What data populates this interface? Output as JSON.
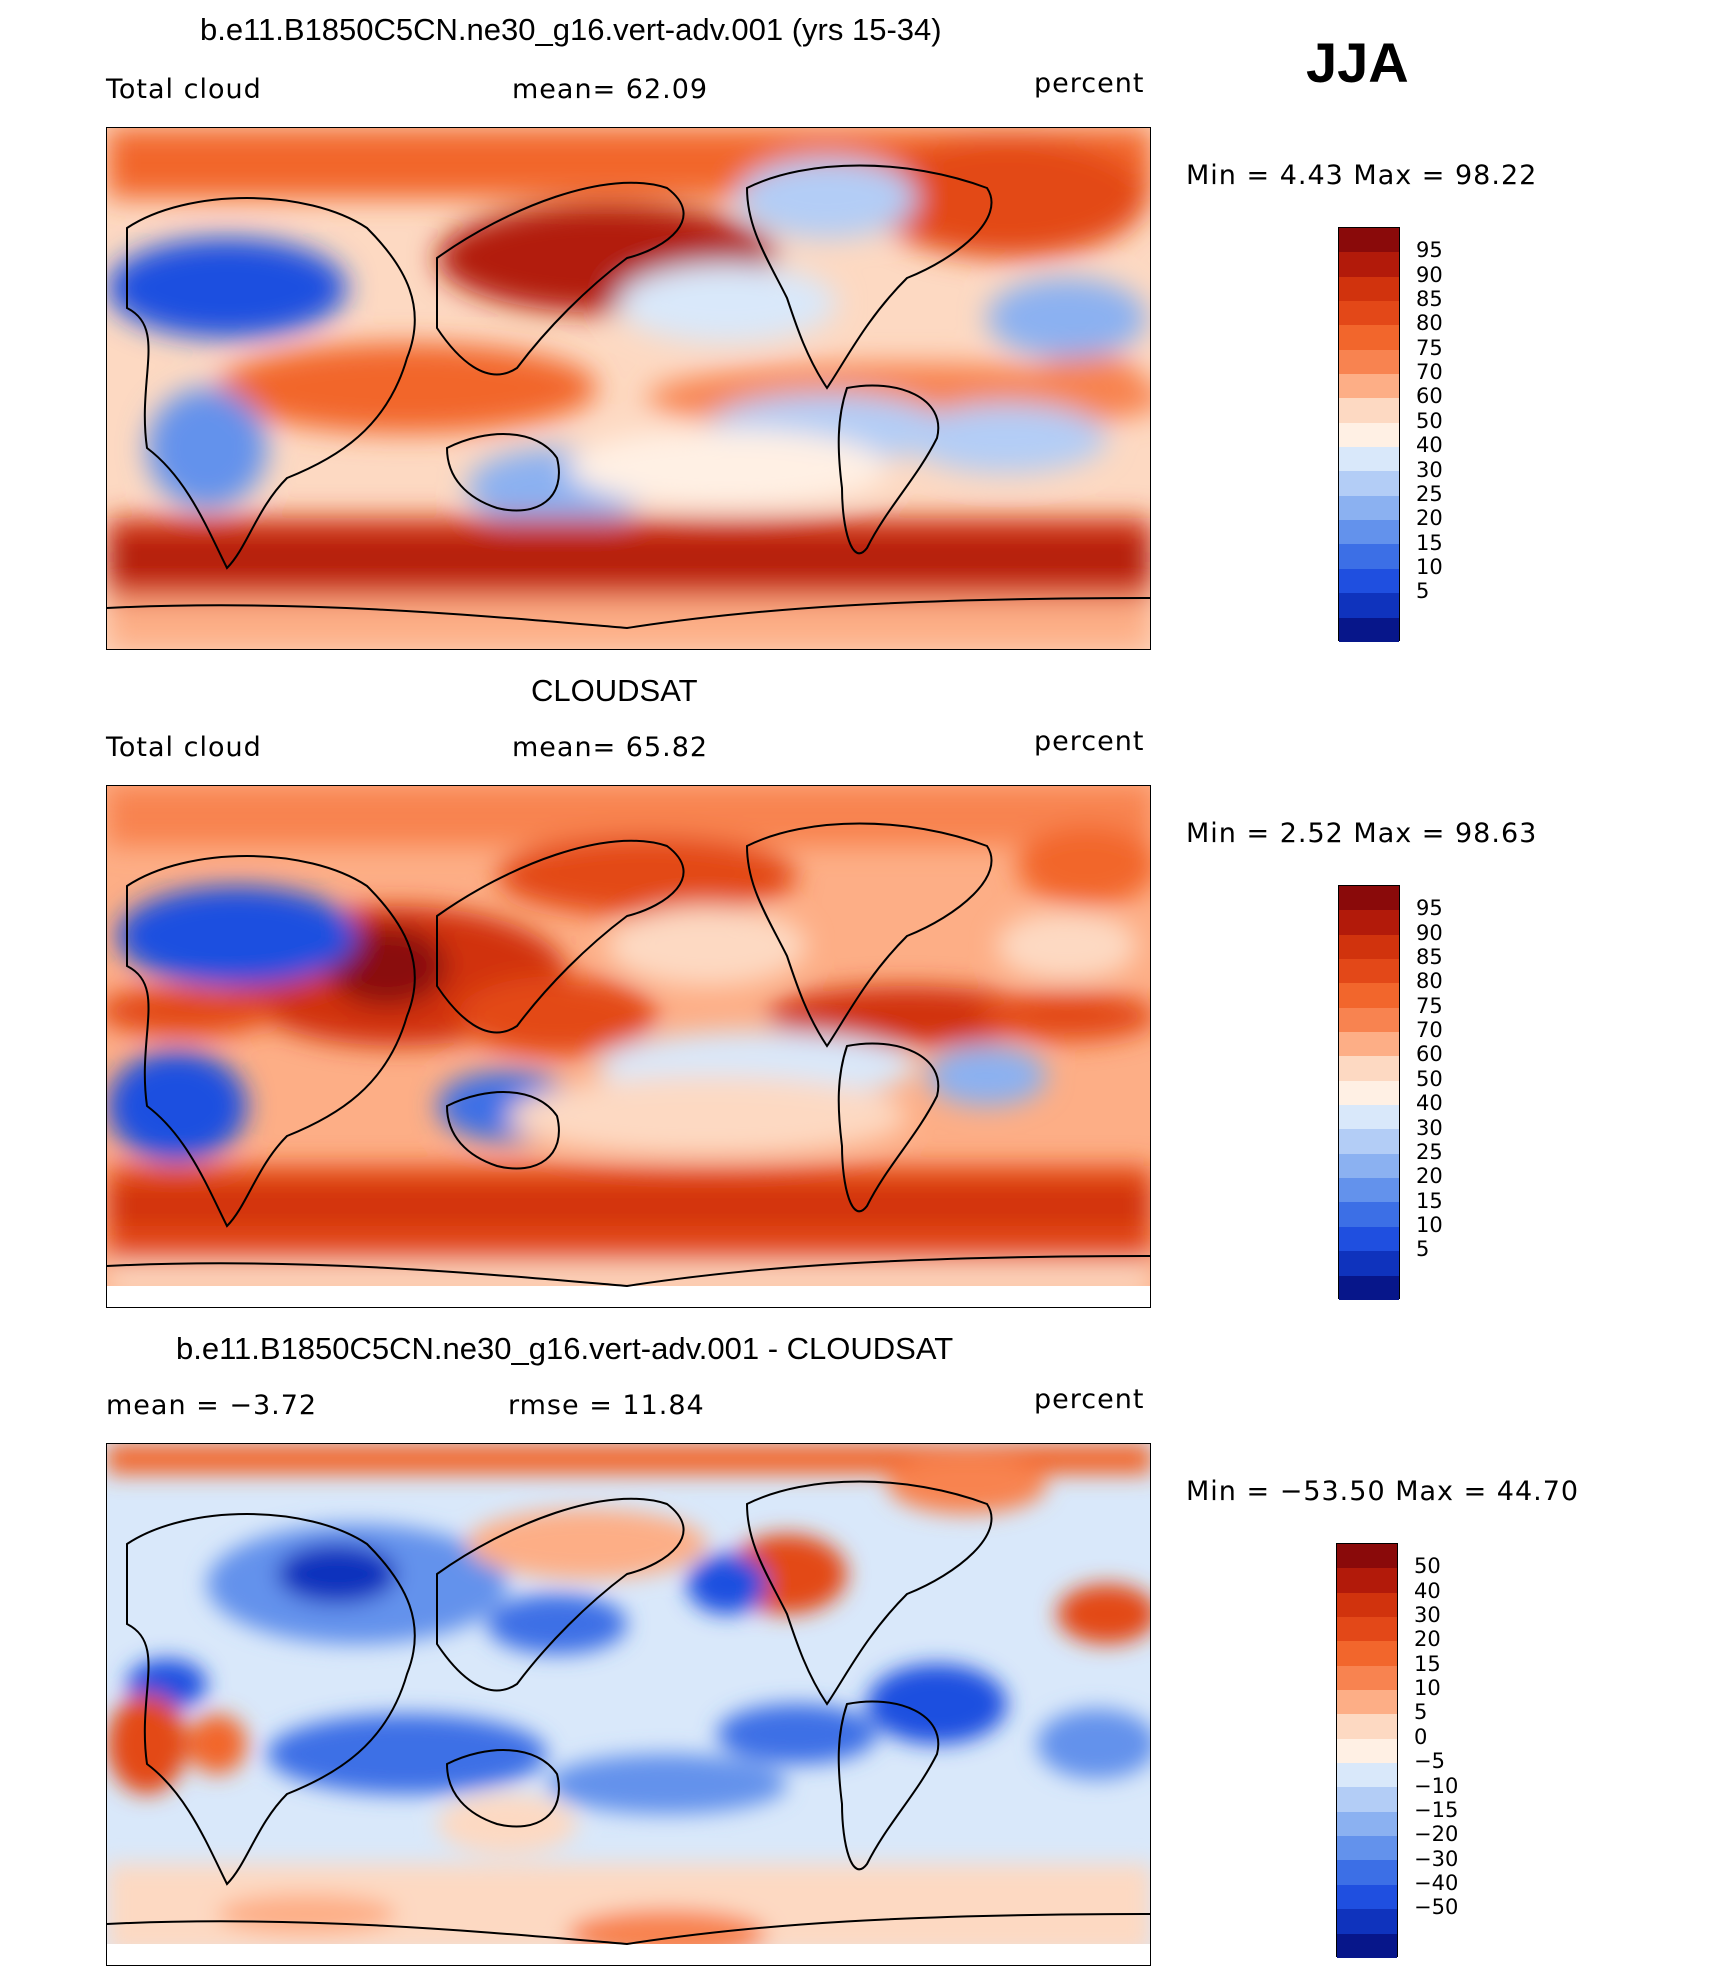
{
  "season": "JJA",
  "panels": [
    {
      "title": "b.e11.B1850C5CN.ne30_g16.vert-adv.001 (yrs 15-34)",
      "left_label": "Total cloud",
      "center_label": "mean=   62.09",
      "right_label": "percent",
      "minmax_label": "Min =    4.43  Max =   98.22"
    },
    {
      "title": "CLOUDSAT",
      "left_label": "Total cloud",
      "center_label": "mean=   65.82",
      "right_label": "percent",
      "minmax_label": "Min =    2.52  Max =   98.63"
    },
    {
      "title": "b.e11.B1850C5CN.ne30_g16.vert-adv.001 - CLOUDSAT",
      "left_label": "mean  =   −3.72",
      "center_label": "rmse  =   11.84",
      "right_label": "percent",
      "minmax_label": "Min = −53.50  Max =   44.70"
    }
  ],
  "colorbars": [
    {
      "labels": [
        "95",
        "90",
        "85",
        "80",
        "75",
        "70",
        "60",
        "50",
        "40",
        "30",
        "25",
        "20",
        "15",
        "10",
        "5"
      ],
      "colors": [
        "#8a0a0a",
        "#b21a0a",
        "#d1330d",
        "#e34818",
        "#f2662c",
        "#f88350",
        "#fdae86",
        "#fdd9c2",
        "#fff0e4",
        "#d9e8fa",
        "#b3cdf6",
        "#8bb1f1",
        "#6392ec",
        "#3c6fe6",
        "#1f4fe0",
        "#0f33bd",
        "#07168a"
      ]
    },
    {
      "labels": [
        "95",
        "90",
        "85",
        "80",
        "75",
        "70",
        "60",
        "50",
        "40",
        "30",
        "25",
        "20",
        "15",
        "10",
        "5"
      ],
      "colors": [
        "#8a0a0a",
        "#b21a0a",
        "#d1330d",
        "#e34818",
        "#f2662c",
        "#f88350",
        "#fdae86",
        "#fdd9c2",
        "#fff0e4",
        "#d9e8fa",
        "#b3cdf6",
        "#8bb1f1",
        "#6392ec",
        "#3c6fe6",
        "#1f4fe0",
        "#0f33bd",
        "#07168a"
      ]
    },
    {
      "labels": [
        "50",
        "40",
        "30",
        "20",
        "15",
        "10",
        "5",
        "0",
        "−5",
        "−10",
        "−15",
        "−20",
        "−30",
        "−40",
        "−50"
      ],
      "colors": [
        "#8a0a0a",
        "#b21a0a",
        "#d1330d",
        "#e34818",
        "#f2662c",
        "#f88350",
        "#fdae86",
        "#fdd9c2",
        "#fff0e4",
        "#d9e8fa",
        "#b3cdf6",
        "#8bb1f1",
        "#6392ec",
        "#3c6fe6",
        "#1f4fe0",
        "#0f33bd",
        "#07168a"
      ]
    }
  ]
}
